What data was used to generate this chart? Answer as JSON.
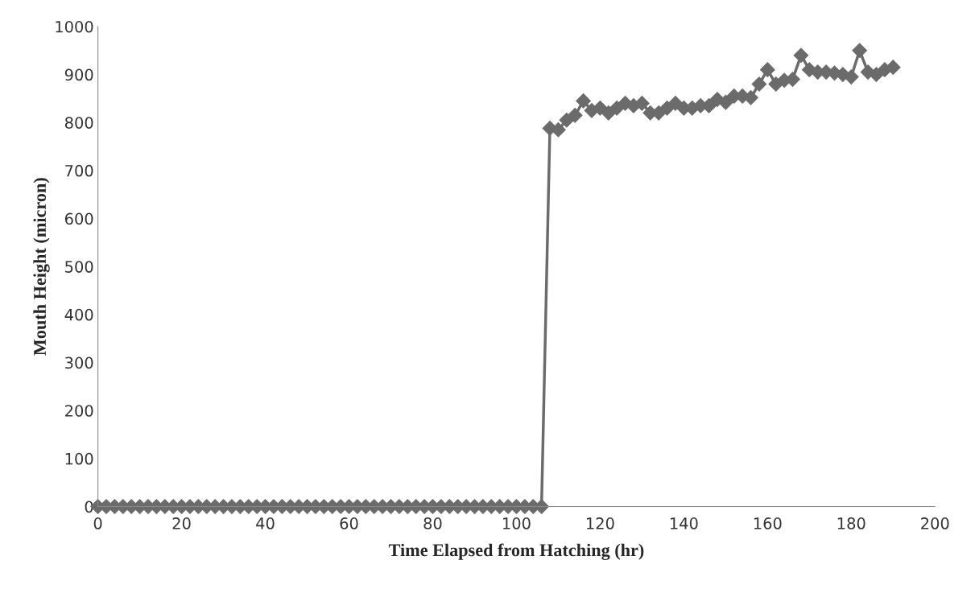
{
  "chart_data": {
    "type": "line",
    "xlabel": "Time Elapsed from Hatching (hr)",
    "ylabel": "Mouth Height (micron)",
    "marker": "diamond",
    "line_style": "solid",
    "grid": false,
    "legend": false,
    "xlim": [
      0,
      200
    ],
    "xticks": [
      0,
      20,
      40,
      60,
      80,
      100,
      120,
      140,
      160,
      180,
      200
    ],
    "ylim": [
      0,
      1000
    ],
    "yticks": [
      0,
      100,
      200,
      300,
      400,
      500,
      600,
      700,
      800,
      900,
      1000
    ],
    "series": [
      {
        "color": "#6b6b6b",
        "x": [
          0,
          2,
          4,
          6,
          8,
          10,
          12,
          14,
          16,
          18,
          20,
          22,
          24,
          26,
          28,
          30,
          32,
          34,
          36,
          38,
          40,
          42,
          44,
          46,
          48,
          50,
          52,
          54,
          56,
          58,
          60,
          62,
          64,
          66,
          68,
          70,
          72,
          74,
          76,
          78,
          80,
          82,
          84,
          86,
          88,
          90,
          92,
          94,
          96,
          98,
          100,
          102,
          104,
          106,
          108,
          110,
          112,
          114,
          116,
          118,
          120,
          122,
          124,
          126,
          128,
          130,
          132,
          134,
          136,
          138,
          140,
          142,
          144,
          146,
          148,
          150,
          152,
          154,
          156,
          158,
          160,
          162,
          164,
          166,
          168,
          170,
          172,
          174,
          176,
          178,
          180,
          182,
          184,
          186,
          188,
          190
        ],
        "values": [
          0,
          0,
          0,
          0,
          0,
          0,
          0,
          0,
          0,
          0,
          0,
          0,
          0,
          0,
          0,
          0,
          0,
          0,
          0,
          0,
          0,
          0,
          0,
          0,
          0,
          0,
          0,
          0,
          0,
          0,
          0,
          0,
          0,
          0,
          0,
          0,
          0,
          0,
          0,
          0,
          0,
          0,
          0,
          0,
          0,
          0,
          0,
          0,
          0,
          0,
          0,
          0,
          0,
          0,
          788,
          785,
          805,
          815,
          845,
          825,
          830,
          820,
          830,
          840,
          835,
          840,
          820,
          820,
          830,
          840,
          830,
          830,
          835,
          835,
          848,
          842,
          855,
          855,
          852,
          880,
          910,
          880,
          888,
          890,
          940,
          910,
          905,
          905,
          903,
          900,
          895,
          950,
          905,
          900,
          910,
          915
        ]
      }
    ]
  }
}
